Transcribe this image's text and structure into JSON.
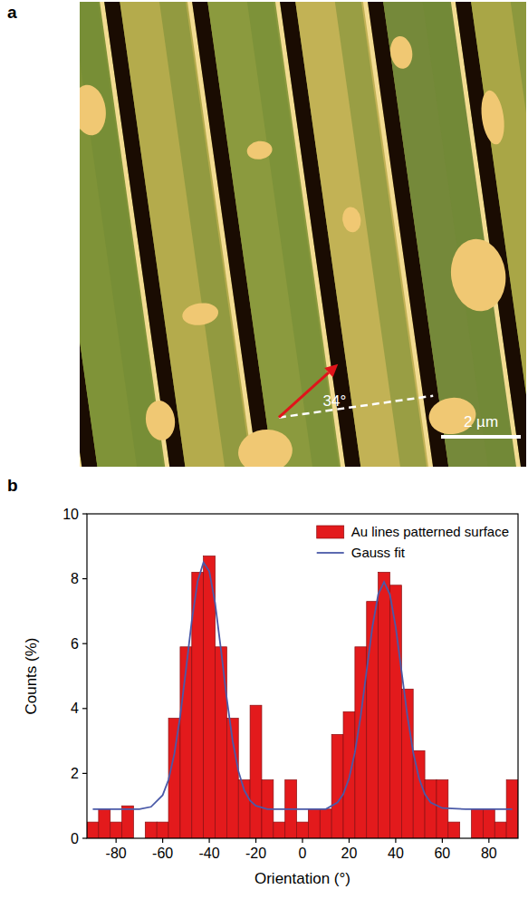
{
  "image_panel": {
    "label": "a",
    "angle": {
      "value": 34,
      "label": "34°"
    },
    "scale_bar": "2 µm"
  },
  "chart_data": {
    "type": "histogram",
    "panel_label": "b",
    "x_label": "Orientation (°)",
    "y_label": "Counts (%)",
    "bins": [
      -92.5,
      -87.5,
      -82.5,
      -77.5,
      -72.5,
      -67.5,
      -62.5,
      -57.5,
      -52.5,
      -47.5,
      -42.5,
      -37.5,
      -32.5,
      -27.5,
      -22.5,
      -17.5,
      -12.5,
      -7.5,
      -2.5,
      2.5,
      7.5,
      12.5,
      17.5,
      22.5,
      27.5,
      32.5,
      37.5,
      42.5,
      47.5,
      52.5,
      57.5,
      62.5,
      67.5,
      72.5,
      77.5,
      82.5,
      87.5,
      92.5
    ],
    "series": [
      {
        "name": "Au lines patterned surface",
        "type": "bar",
        "color": "#e31a1c",
        "values": [
          0.5,
          0.9,
          0.5,
          1.0,
          0,
          0.5,
          0.5,
          3.7,
          5.9,
          8.2,
          8.7,
          5.9,
          3.7,
          1.8,
          4.1,
          1.8,
          0.5,
          1.8,
          0.5,
          0.9,
          0.9,
          3.2,
          3.9,
          5.9,
          7.3,
          8.2,
          7.8,
          4.6,
          2.7,
          1.8,
          1.8,
          0.5,
          0,
          0.9,
          0.9,
          0.5,
          1.8
        ]
      },
      {
        "name": "Gauss fit",
        "type": "line",
        "color": "#4a5aa8",
        "x": [
          -90,
          -80,
          -70,
          -65,
          -60,
          -57.5,
          -55,
          -52.5,
          -50,
          -47.5,
          -45,
          -42.5,
          -40,
          -37.5,
          -35,
          -32.5,
          -30,
          -27.5,
          -25,
          -22.5,
          -20,
          -15,
          -10,
          0,
          10,
          15,
          17.5,
          20,
          22.5,
          25,
          27.5,
          30,
          32.5,
          35,
          37.5,
          40,
          42.5,
          45,
          47.5,
          50,
          52.5,
          55,
          60,
          70,
          80,
          90
        ],
        "values": [
          0.9,
          0.9,
          0.9,
          0.97,
          1.33,
          1.8,
          2.6,
          3.75,
          5.2,
          6.71,
          7.92,
          8.5,
          8.23,
          7.25,
          5.82,
          4.31,
          3.01,
          2.07,
          1.48,
          1.16,
          1.0,
          0.9,
          0.9,
          0.9,
          0.9,
          1.1,
          1.36,
          1.85,
          2.65,
          3.78,
          5.15,
          6.51,
          7.52,
          7.9,
          7.52,
          6.51,
          5.15,
          3.78,
          2.65,
          1.85,
          1.36,
          1.1,
          0.93,
          0.9,
          0.9,
          0.9
        ]
      }
    ],
    "xlim": [
      -92.5,
      92.5
    ],
    "xticks": [
      -80,
      -60,
      -40,
      -20,
      0,
      20,
      40,
      60,
      80
    ],
    "ylim": [
      0,
      10
    ],
    "yticks": [
      0,
      2,
      4,
      6,
      8,
      10
    ],
    "grid": false,
    "legend": "upper right"
  }
}
